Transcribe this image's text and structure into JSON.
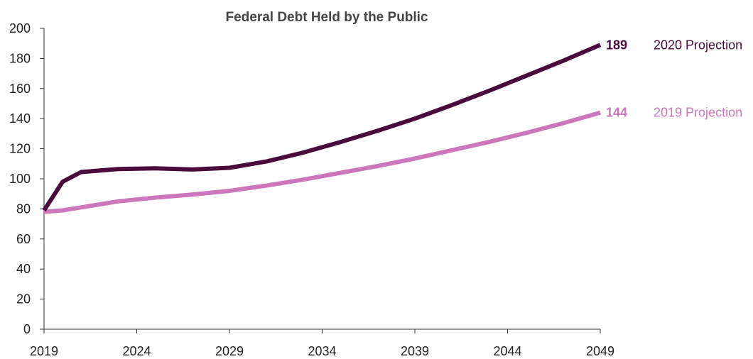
{
  "chart_data": {
    "type": "line",
    "title": "Federal Debt Held by the Public",
    "xlabel": "",
    "ylabel": "",
    "xlim": [
      2019,
      2049
    ],
    "ylim": [
      0,
      200
    ],
    "x_ticks": [
      2019,
      2024,
      2029,
      2034,
      2039,
      2044,
      2049
    ],
    "y_ticks": [
      0,
      20,
      40,
      60,
      80,
      100,
      120,
      140,
      160,
      180,
      200
    ],
    "grid": false,
    "legend": "end-of-line labels",
    "series": [
      {
        "name": "2020 Projection",
        "end_value_label": "189",
        "color": "#4a0a3c",
        "x": [
          2019,
          2020,
          2021,
          2023,
          2025,
          2027,
          2029,
          2031,
          2033,
          2035,
          2037,
          2039,
          2041,
          2043,
          2045,
          2047,
          2049
        ],
        "y": [
          79,
          98,
          104.5,
          106.5,
          107,
          106.2,
          107.3,
          111.5,
          117.5,
          124.5,
          132,
          140,
          149,
          158.5,
          168.5,
          178.5,
          189
        ]
      },
      {
        "name": "2019 Projection",
        "end_value_label": "144",
        "color": "#cc77bb",
        "x": [
          2019,
          2020,
          2021,
          2023,
          2025,
          2027,
          2029,
          2031,
          2033,
          2035,
          2037,
          2039,
          2041,
          2043,
          2045,
          2047,
          2049
        ],
        "y": [
          78,
          79,
          81,
          85,
          87.5,
          89.5,
          92,
          95.5,
          99.5,
          104,
          108.5,
          113.5,
          119,
          124.5,
          130.5,
          137,
          144
        ]
      }
    ]
  }
}
